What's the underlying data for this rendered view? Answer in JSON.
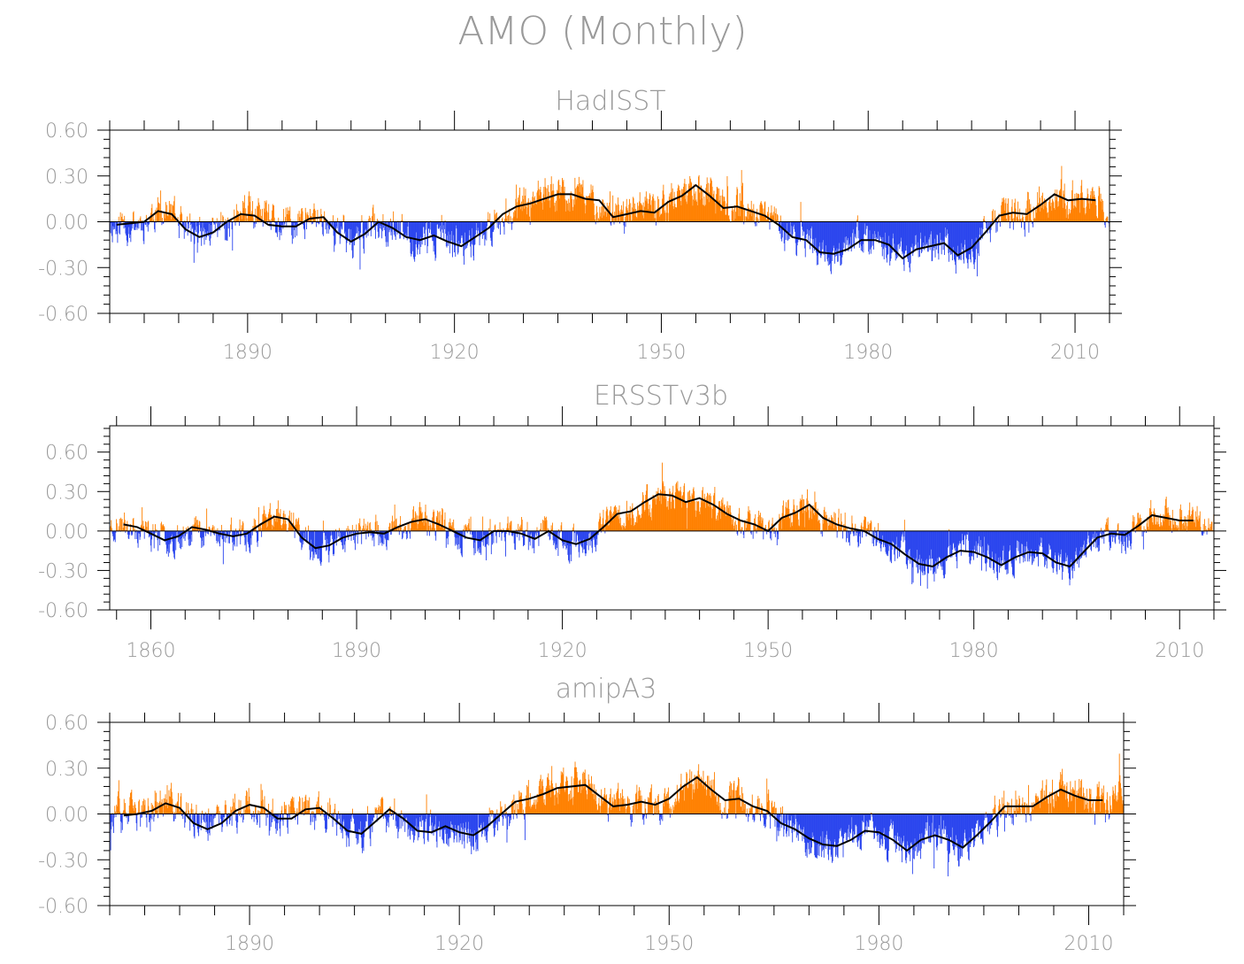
{
  "figure": {
    "title": "AMO (Monthly)"
  },
  "colors": {
    "positive": "#ff8000",
    "negative": "#2a45ee",
    "smooth": "#000000",
    "axis": "#000000",
    "text": "#9a9a9a"
  },
  "chart_data": [
    {
      "type": "bar",
      "title": "HadISST",
      "x_range": [
        1870,
        2015
      ],
      "ylim": [
        -0.6,
        0.6
      ],
      "y_ticks": [
        "0.60",
        "0.30",
        "0.00",
        "-0.30",
        "-0.60"
      ],
      "y_tick_values": [
        0.6,
        0.3,
        0.0,
        -0.3,
        -0.6
      ],
      "x_ticks": [
        "1890",
        "1920",
        "1950",
        "1980",
        "2010"
      ],
      "x_tick_values": [
        1890,
        1920,
        1950,
        1980,
        2010
      ],
      "series": [
        {
          "name": "monthly anomaly",
          "style": "bars colored by sign"
        },
        {
          "name": "smoothed",
          "style": "black line",
          "x": [
            1871,
            1873,
            1875,
            1877,
            1879,
            1881,
            1883,
            1885,
            1887,
            1889,
            1891,
            1893,
            1895,
            1897,
            1899,
            1901,
            1903,
            1905,
            1907,
            1909,
            1911,
            1913,
            1915,
            1917,
            1919,
            1921,
            1923,
            1925,
            1927,
            1929,
            1931,
            1933,
            1935,
            1937,
            1939,
            1941,
            1943,
            1945,
            1947,
            1949,
            1951,
            1953,
            1955,
            1957,
            1959,
            1961,
            1963,
            1965,
            1967,
            1969,
            1971,
            1973,
            1975,
            1977,
            1979,
            1981,
            1983,
            1985,
            1987,
            1989,
            1991,
            1993,
            1995,
            1997,
            1999,
            2001,
            2003,
            2005,
            2007,
            2009,
            2011,
            2013
          ],
          "y": [
            -0.02,
            -0.01,
            0.0,
            0.07,
            0.05,
            -0.05,
            -0.1,
            -0.07,
            0.0,
            0.05,
            0.04,
            -0.02,
            -0.03,
            -0.03,
            0.02,
            0.03,
            -0.07,
            -0.13,
            -0.08,
            0.0,
            -0.04,
            -0.1,
            -0.12,
            -0.09,
            -0.13,
            -0.16,
            -0.1,
            -0.04,
            0.05,
            0.1,
            0.12,
            0.15,
            0.18,
            0.18,
            0.15,
            0.14,
            0.03,
            0.05,
            0.07,
            0.06,
            0.13,
            0.17,
            0.24,
            0.17,
            0.09,
            0.1,
            0.07,
            0.04,
            -0.02,
            -0.1,
            -0.12,
            -0.2,
            -0.21,
            -0.18,
            -0.12,
            -0.12,
            -0.15,
            -0.24,
            -0.18,
            -0.16,
            -0.14,
            -0.22,
            -0.17,
            -0.07,
            0.04,
            0.06,
            0.05,
            0.11,
            0.18,
            0.14,
            0.15,
            0.14
          ]
        }
      ]
    },
    {
      "type": "bar",
      "title": "ERSSTv3b",
      "x_range": [
        1854,
        2015
      ],
      "ylim": [
        -0.6,
        0.8
      ],
      "y_ticks": [
        "0.60",
        "0.30",
        "0.00",
        "-0.30",
        "-0.60"
      ],
      "y_tick_values": [
        0.6,
        0.3,
        0.0,
        -0.3,
        -0.6
      ],
      "x_ticks": [
        "1860",
        "1890",
        "1920",
        "1950",
        "1980",
        "2010"
      ],
      "x_tick_values": [
        1860,
        1890,
        1920,
        1950,
        1980,
        2010
      ],
      "series": [
        {
          "name": "monthly anomaly",
          "style": "bars colored by sign"
        },
        {
          "name": "smoothed",
          "style": "black line",
          "x": [
            1856,
            1858,
            1860,
            1862,
            1864,
            1866,
            1868,
            1870,
            1872,
            1874,
            1876,
            1878,
            1880,
            1882,
            1884,
            1886,
            1888,
            1890,
            1892,
            1894,
            1896,
            1898,
            1900,
            1902,
            1904,
            1906,
            1908,
            1910,
            1912,
            1914,
            1916,
            1918,
            1920,
            1922,
            1924,
            1926,
            1928,
            1930,
            1932,
            1934,
            1936,
            1938,
            1940,
            1942,
            1944,
            1946,
            1948,
            1950,
            1952,
            1954,
            1956,
            1958,
            1960,
            1962,
            1964,
            1966,
            1968,
            1970,
            1972,
            1974,
            1976,
            1978,
            1980,
            1982,
            1984,
            1986,
            1988,
            1990,
            1992,
            1994,
            1996,
            1998,
            2000,
            2002,
            2004,
            2006,
            2008,
            2010,
            2012
          ],
          "y": [
            0.05,
            0.03,
            -0.02,
            -0.07,
            -0.04,
            0.03,
            0.01,
            -0.02,
            -0.04,
            -0.02,
            0.05,
            0.11,
            0.09,
            -0.05,
            -0.13,
            -0.11,
            -0.05,
            -0.02,
            -0.01,
            -0.02,
            0.03,
            0.07,
            0.09,
            0.05,
            0.0,
            -0.05,
            -0.07,
            0.0,
            0.0,
            -0.02,
            -0.06,
            0.0,
            -0.07,
            -0.1,
            -0.06,
            0.03,
            0.13,
            0.15,
            0.22,
            0.28,
            0.27,
            0.22,
            0.25,
            0.2,
            0.13,
            0.08,
            0.05,
            0.0,
            0.1,
            0.14,
            0.2,
            0.1,
            0.05,
            0.02,
            0.0,
            -0.06,
            -0.1,
            -0.18,
            -0.25,
            -0.27,
            -0.2,
            -0.15,
            -0.16,
            -0.2,
            -0.26,
            -0.2,
            -0.16,
            -0.17,
            -0.24,
            -0.27,
            -0.16,
            -0.05,
            -0.02,
            -0.03,
            0.04,
            0.12,
            0.1,
            0.08,
            0.08
          ]
        }
      ]
    },
    {
      "type": "bar",
      "title": "amipA3",
      "x_range": [
        1870,
        2015
      ],
      "ylim": [
        -0.6,
        0.6
      ],
      "y_ticks": [
        "0.60",
        "0.30",
        "0.00",
        "-0.30",
        "-0.60"
      ],
      "y_tick_values": [
        0.6,
        0.3,
        0.0,
        -0.3,
        -0.6
      ],
      "x_ticks": [
        "1890",
        "1920",
        "1950",
        "1980",
        "2010"
      ],
      "x_tick_values": [
        1890,
        1920,
        1950,
        1980,
        2010
      ],
      "series": [
        {
          "name": "monthly anomaly",
          "style": "bars colored by sign"
        },
        {
          "name": "smoothed",
          "style": "black line",
          "x": [
            1872,
            1874,
            1876,
            1878,
            1880,
            1882,
            1884,
            1886,
            1888,
            1890,
            1892,
            1894,
            1896,
            1898,
            1900,
            1902,
            1904,
            1906,
            1908,
            1910,
            1912,
            1914,
            1916,
            1918,
            1920,
            1922,
            1924,
            1926,
            1928,
            1930,
            1932,
            1934,
            1936,
            1938,
            1940,
            1942,
            1944,
            1946,
            1948,
            1950,
            1952,
            1954,
            1956,
            1958,
            1960,
            1962,
            1964,
            1966,
            1968,
            1970,
            1972,
            1974,
            1976,
            1978,
            1980,
            1982,
            1984,
            1986,
            1988,
            1990,
            1992,
            1994,
            1996,
            1998,
            2000,
            2002,
            2004,
            2006,
            2008,
            2010,
            2012
          ],
          "y": [
            -0.01,
            0.0,
            0.02,
            0.07,
            0.04,
            -0.06,
            -0.1,
            -0.06,
            0.02,
            0.06,
            0.04,
            -0.03,
            -0.03,
            0.03,
            0.04,
            -0.03,
            -0.11,
            -0.13,
            -0.05,
            0.03,
            -0.03,
            -0.11,
            -0.12,
            -0.08,
            -0.12,
            -0.14,
            -0.08,
            0.0,
            0.08,
            0.1,
            0.13,
            0.17,
            0.18,
            0.19,
            0.12,
            0.05,
            0.06,
            0.08,
            0.06,
            0.1,
            0.18,
            0.24,
            0.16,
            0.09,
            0.1,
            0.05,
            0.02,
            -0.06,
            -0.1,
            -0.16,
            -0.2,
            -0.21,
            -0.17,
            -0.11,
            -0.12,
            -0.17,
            -0.24,
            -0.17,
            -0.14,
            -0.17,
            -0.22,
            -0.14,
            -0.05,
            0.05,
            0.05,
            0.05,
            0.11,
            0.16,
            0.12,
            0.09,
            0.09
          ]
        }
      ]
    }
  ]
}
